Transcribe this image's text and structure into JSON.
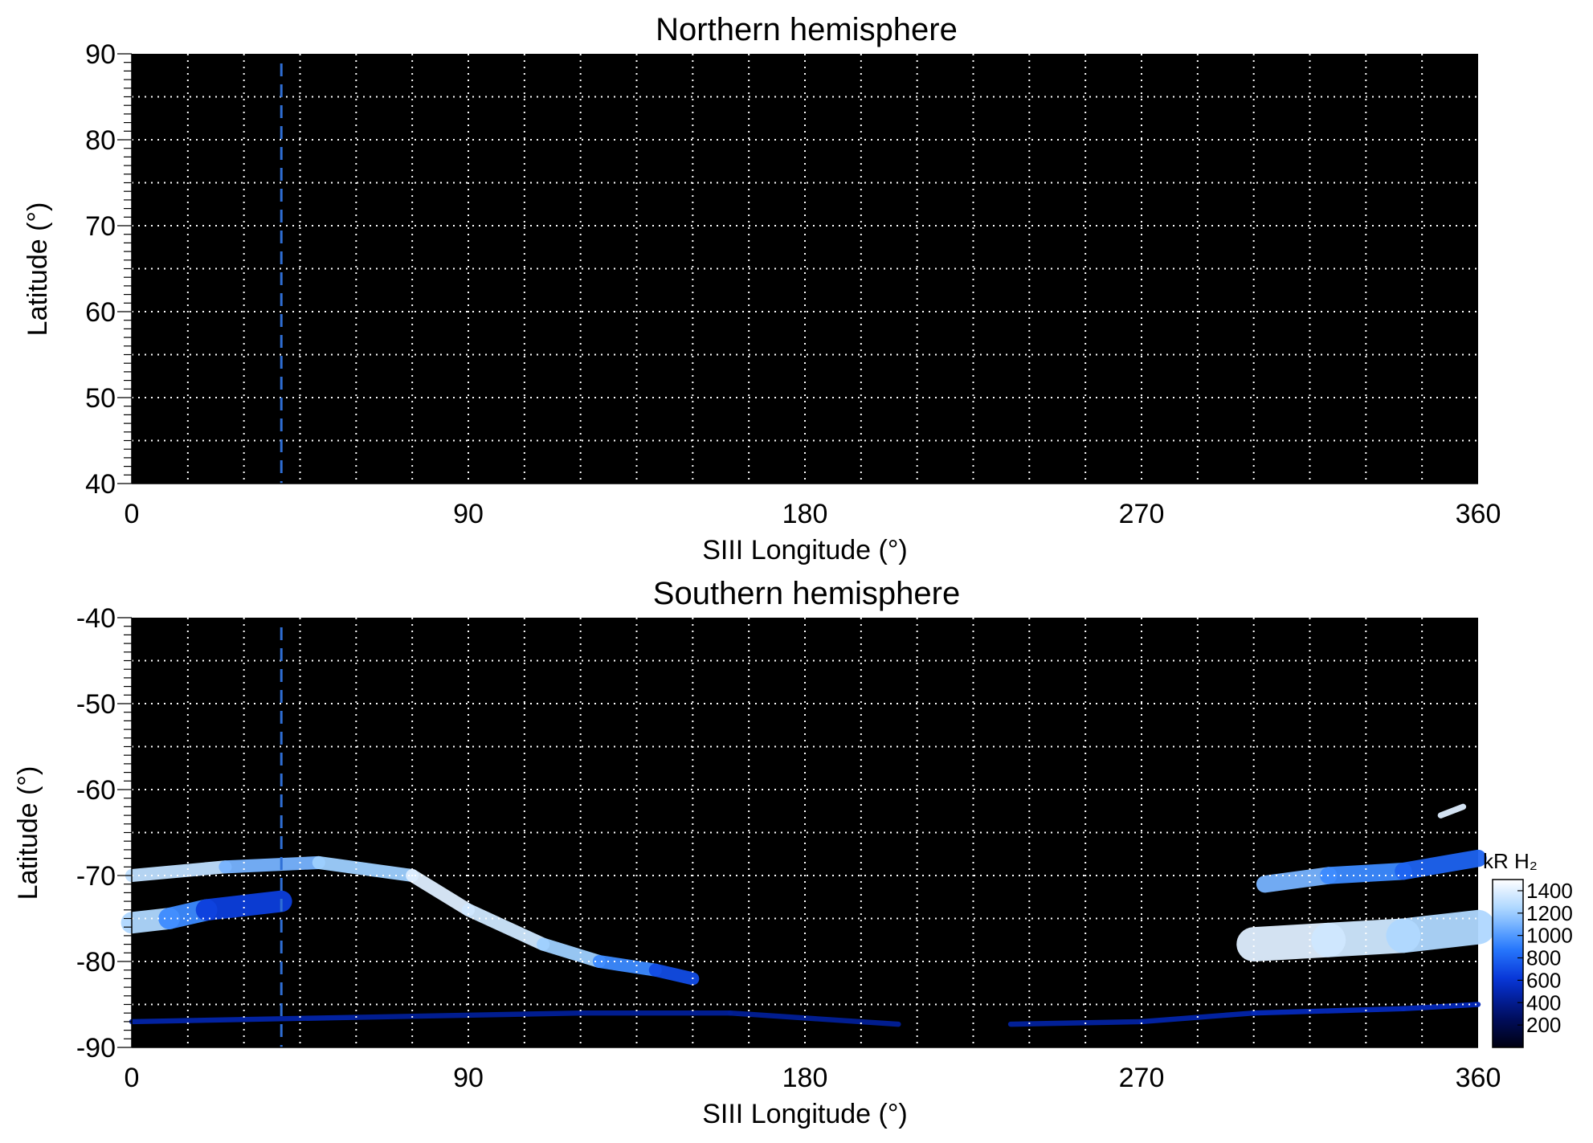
{
  "colors": {
    "background": "#000000",
    "grid": "#ffffff",
    "dashed_marker": "#2f6fd6",
    "colormap": [
      "#000010",
      "#00106a",
      "#0633d6",
      "#2a7dff",
      "#9fd0ff",
      "#ffffff"
    ]
  },
  "chart_data": [
    {
      "type": "heatmap",
      "title": "Northern hemisphere",
      "xlabel": "SIII Longitude (°)",
      "ylabel": "Latitude (°)",
      "xlim": [
        0,
        360
      ],
      "ylim": [
        40,
        90
      ],
      "xticks": [
        0,
        90,
        180,
        270,
        360
      ],
      "yticks": [
        40,
        50,
        60,
        70,
        80,
        90
      ],
      "xtick_labels": [
        "0",
        "90",
        "180",
        "270",
        "360"
      ],
      "ytick_labels": [
        "40",
        "50",
        "60",
        "70",
        "80",
        "90"
      ],
      "grid": true,
      "grid_x_step": 15,
      "grid_y_step": 5,
      "marker_longitude": 40,
      "emission": []
    },
    {
      "type": "heatmap",
      "title": "Southern hemisphere",
      "xlabel": "SIII Longitude (°)",
      "ylabel": "Latitude (°)",
      "xlim": [
        0,
        360
      ],
      "ylim": [
        -90,
        -40
      ],
      "xticks": [
        0,
        90,
        180,
        270,
        360
      ],
      "yticks": [
        -90,
        -80,
        -70,
        -60,
        -50,
        -40
      ],
      "xtick_labels": [
        "0",
        "90",
        "180",
        "270",
        "360"
      ],
      "ytick_labels": [
        "-90",
        "-80",
        "-70",
        "-60",
        "-50",
        "-40"
      ],
      "grid": true,
      "grid_x_step": 15,
      "grid_y_step": 5,
      "marker_longitude": 40,
      "emission": [
        {
          "lon": [
            0,
            25,
            50,
            75,
            90,
            110,
            125,
            140,
            150
          ],
          "lat": [
            -70,
            -69,
            -68.5,
            -70,
            -74,
            -78,
            -80,
            -81,
            -82
          ],
          "intensity": [
            1400,
            1200,
            1000,
            1400,
            1400,
            1300,
            1100,
            800,
            600
          ],
          "width": 1.5
        },
        {
          "lon": [
            0,
            10,
            20,
            40
          ],
          "lat": [
            -75.5,
            -75,
            -74,
            -73
          ],
          "intensity": [
            1400,
            1100,
            800,
            500
          ],
          "width": 2.5
        },
        {
          "lon": [
            300,
            320,
            340,
            360
          ],
          "lat": [
            -78,
            -77.5,
            -77,
            -76
          ],
          "intensity": [
            1400,
            1400,
            1300,
            1200
          ],
          "width": 4
        },
        {
          "lon": [
            303,
            320,
            340,
            360
          ],
          "lat": [
            -71,
            -70,
            -69.5,
            -68
          ],
          "intensity": [
            1200,
            1000,
            900,
            700
          ],
          "width": 2
        },
        {
          "lon": [
            350,
            356
          ],
          "lat": [
            -63,
            -62
          ],
          "intensity": [
            1400,
            1400
          ],
          "width": 0.7
        },
        {
          "lon": [
            0,
            60,
            120,
            160,
            205
          ],
          "lat": [
            -87,
            -86.5,
            -86,
            -86,
            -87.3
          ],
          "intensity": [
            500,
            450,
            400,
            450,
            400
          ],
          "width": 0.6
        },
        {
          "lon": [
            235,
            270,
            300,
            340,
            360
          ],
          "lat": [
            -87.3,
            -87,
            -86,
            -85.5,
            -85
          ],
          "intensity": [
            450,
            450,
            500,
            550,
            500
          ],
          "width": 0.6
        }
      ],
      "colorbar": {
        "label": "kR H₂",
        "ticks": [
          200,
          400,
          600,
          800,
          1000,
          1200,
          1400
        ],
        "tick_labels": [
          "200",
          "400",
          "600",
          "800",
          "1000",
          "1200",
          "1400"
        ],
        "range": [
          0,
          1500
        ]
      }
    }
  ]
}
